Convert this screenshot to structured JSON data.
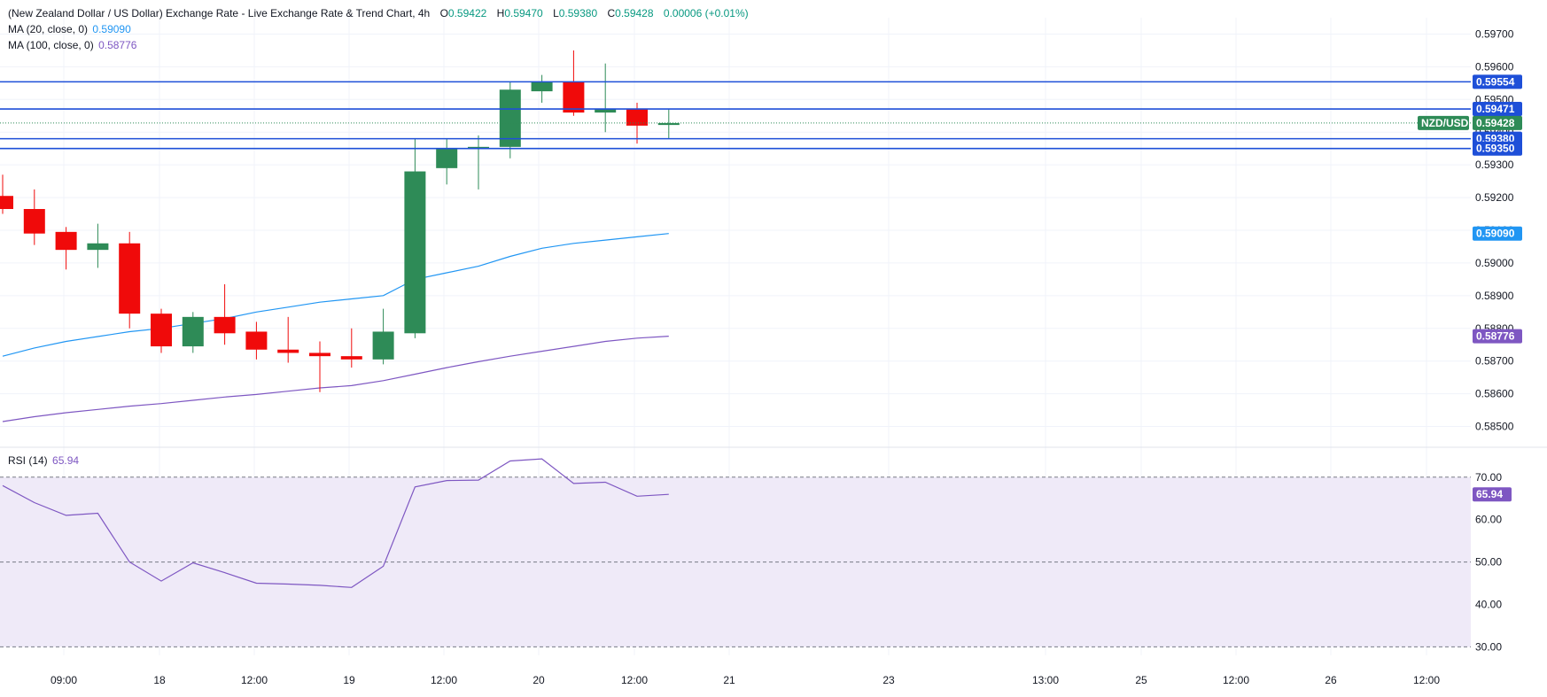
{
  "header": {
    "title": "(New Zealand Dollar / US Dollar) Exchange Rate - Live Exchange Rate & Trend Chart, 4h",
    "o_label": "O",
    "o_value": "0.59422",
    "h_label": "H",
    "h_value": "0.59470",
    "l_label": "L",
    "l_value": "0.59380",
    "c_label": "C",
    "c_value": "0.59428",
    "change": "0.00006 (+0.01%)"
  },
  "indicators": {
    "ma20_label": "MA (20, close, 0)",
    "ma20_value": "0.59090",
    "ma100_label": "MA (100, close, 0)",
    "ma100_value": "0.58776",
    "rsi_label": "RSI (14)",
    "rsi_value": "65.94"
  },
  "colors": {
    "up": "#2e8b57",
    "down": "#f00a0a",
    "ma20": "#2196f3",
    "ma100": "#7e57c2",
    "hline": "#1e4fd8",
    "rsi_line": "#7e57c2",
    "rsi_band": "#efeaf8",
    "grid": "#f0f3fa",
    "text": "#131722"
  },
  "chart_data": [
    {
      "type": "candlestick",
      "symbol": "NZD/USD",
      "interval": "4h",
      "ylim": [
        0.5845,
        0.5975
      ],
      "yticks": [
        "0.58500",
        "0.58600",
        "0.58700",
        "0.58800",
        "0.58900",
        "0.59000",
        "0.59100",
        "0.59200",
        "0.59300",
        "0.59400",
        "0.59500",
        "0.59600",
        "0.59700"
      ],
      "xticks": [
        "09:00",
        "18",
        "12:00",
        "19",
        "12:00",
        "20",
        "12:00",
        "21",
        "23",
        "13:00",
        "25",
        "12:00",
        "26",
        "12:00"
      ],
      "candles": [
        {
          "o": 0.59205,
          "h": 0.5927,
          "l": 0.5915,
          "c": 0.59165
        },
        {
          "o": 0.59165,
          "h": 0.59225,
          "l": 0.59055,
          "c": 0.5909
        },
        {
          "o": 0.59095,
          "h": 0.5911,
          "l": 0.5898,
          "c": 0.5904
        },
        {
          "o": 0.5904,
          "h": 0.5912,
          "l": 0.58985,
          "c": 0.5906
        },
        {
          "o": 0.5906,
          "h": 0.59095,
          "l": 0.588,
          "c": 0.58845
        },
        {
          "o": 0.58845,
          "h": 0.5886,
          "l": 0.58725,
          "c": 0.58745
        },
        {
          "o": 0.58745,
          "h": 0.5885,
          "l": 0.58725,
          "c": 0.58835
        },
        {
          "o": 0.58835,
          "h": 0.58935,
          "l": 0.5875,
          "c": 0.58785
        },
        {
          "o": 0.5879,
          "h": 0.5882,
          "l": 0.58705,
          "c": 0.58735
        },
        {
          "o": 0.58735,
          "h": 0.58835,
          "l": 0.58695,
          "c": 0.58725
        },
        {
          "o": 0.58725,
          "h": 0.5876,
          "l": 0.58605,
          "c": 0.58715
        },
        {
          "o": 0.58715,
          "h": 0.588,
          "l": 0.5868,
          "c": 0.58705
        },
        {
          "o": 0.58705,
          "h": 0.5886,
          "l": 0.5869,
          "c": 0.5879
        },
        {
          "o": 0.58785,
          "h": 0.5938,
          "l": 0.5877,
          "c": 0.5928
        },
        {
          "o": 0.5929,
          "h": 0.5938,
          "l": 0.5924,
          "c": 0.5935
        },
        {
          "o": 0.5935,
          "h": 0.5939,
          "l": 0.59225,
          "c": 0.59355
        },
        {
          "o": 0.59355,
          "h": 0.59555,
          "l": 0.5932,
          "c": 0.5953
        },
        {
          "o": 0.59525,
          "h": 0.59575,
          "l": 0.5949,
          "c": 0.59555
        },
        {
          "o": 0.59555,
          "h": 0.5965,
          "l": 0.5945,
          "c": 0.5946
        },
        {
          "o": 0.5946,
          "h": 0.5961,
          "l": 0.594,
          "c": 0.5947
        },
        {
          "o": 0.5947,
          "h": 0.5949,
          "l": 0.59365,
          "c": 0.5942
        },
        {
          "o": 0.59422,
          "h": 0.5947,
          "l": 0.5938,
          "c": 0.59428
        }
      ],
      "ma20": [
        0.58715,
        0.5874,
        0.5876,
        0.58775,
        0.5879,
        0.588,
        0.58815,
        0.5883,
        0.5885,
        0.58865,
        0.5888,
        0.5889,
        0.589,
        0.5895,
        0.5897,
        0.5899,
        0.5902,
        0.59045,
        0.5906,
        0.5907,
        0.5908,
        0.5909
      ],
      "ma100": [
        0.58515,
        0.5853,
        0.58542,
        0.58552,
        0.58562,
        0.5857,
        0.5858,
        0.5859,
        0.58598,
        0.58608,
        0.58618,
        0.58625,
        0.5864,
        0.5866,
        0.5868,
        0.58698,
        0.58715,
        0.5873,
        0.58745,
        0.5876,
        0.5877,
        0.58776
      ],
      "horizontal_levels": [
        {
          "value": 0.59554,
          "label": "0.59554"
        },
        {
          "value": 0.59471,
          "label": "0.59471"
        },
        {
          "value": 0.5938,
          "label": "0.59380"
        },
        {
          "value": 0.5935,
          "label": "0.59350"
        }
      ],
      "last_price": {
        "value": 0.59428,
        "label": "0.59428",
        "tag": "NZD/USD"
      },
      "ma20_last_label": "0.59090",
      "ma100_last_label": "0.58776"
    },
    {
      "type": "line",
      "name": "RSI (14)",
      "ylim": [
        28,
        76
      ],
      "yticks": [
        "30.00",
        "40.00",
        "50.00",
        "60.00",
        "70.00"
      ],
      "bands": [
        30,
        50,
        70
      ],
      "values": [
        68.0,
        64.0,
        61.0,
        61.5,
        50.0,
        45.5,
        49.8,
        47.5,
        45.0,
        44.8,
        44.5,
        44.0,
        49.0,
        67.7,
        69.2,
        69.3,
        73.8,
        74.3,
        68.5,
        68.8,
        65.5,
        65.94
      ],
      "last_label": "65.94"
    }
  ]
}
